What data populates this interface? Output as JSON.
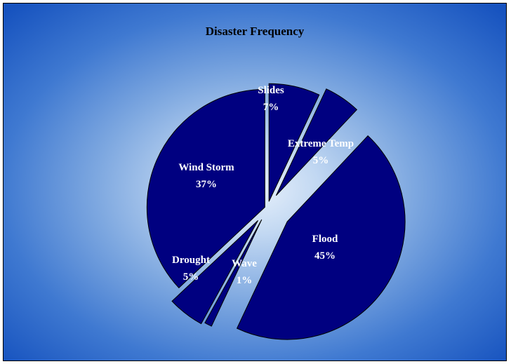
{
  "chart_data": {
    "type": "pie",
    "title": "Disaster Frequency",
    "exploded": true,
    "start_angle_deg": 0,
    "direction": "clockwise",
    "slices": [
      {
        "name": "Slides",
        "value": 7,
        "label": "7%"
      },
      {
        "name": "Extreme Temp",
        "value": 5,
        "label": "5%"
      },
      {
        "name": "Flood",
        "value": 45,
        "label": "45%"
      },
      {
        "name": "Wave",
        "value": 1,
        "label": "1%"
      },
      {
        "name": "Drought",
        "value": 5,
        "label": "5%"
      },
      {
        "name": "Wind Storm",
        "value": 37,
        "label": "37%"
      }
    ],
    "slice_color": "#000080",
    "slice_outline": "#000000",
    "label_color": "#ffffff"
  }
}
